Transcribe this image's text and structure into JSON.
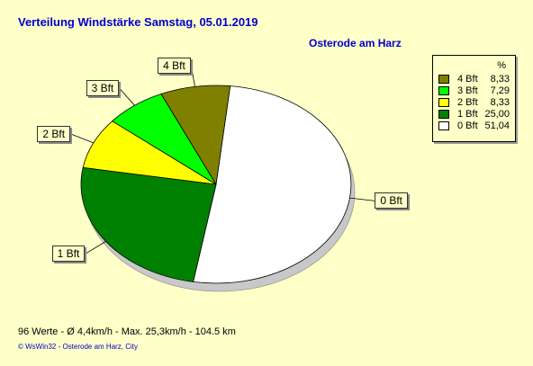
{
  "header": {
    "title": "Verteilung Windstärke  Samstag, 05.01.2019",
    "location": "Osterode am Harz"
  },
  "legend": {
    "percent_header": "%"
  },
  "chart_data": {
    "type": "pie",
    "title": "Verteilung Windstärke  Samstag, 05.01.2019",
    "slices": [
      {
        "label": "0 Bft",
        "value": 51.04,
        "value_text": "51,04",
        "color": "#ffffff"
      },
      {
        "label": "1 Bft",
        "value": 25.0,
        "value_text": "25,00",
        "color": "#008000"
      },
      {
        "label": "2 Bft",
        "value": 8.33,
        "value_text": "8,33",
        "color": "#ffff00"
      },
      {
        "label": "3 Bft",
        "value": 7.29,
        "value_text": "7,29",
        "color": "#00ff00"
      },
      {
        "label": "4 Bft",
        "value": 8.33,
        "value_text": "8,33",
        "color": "#808000"
      }
    ],
    "legend_order": [
      "4 Bft",
      "3 Bft",
      "2 Bft",
      "1 Bft",
      "0 Bft"
    ],
    "legend_position": "top-right"
  },
  "stats": {
    "text": "96 Werte   -   Ø 4,4km/h  -  Max. 25,3km/h   -   104.5 km"
  },
  "footer": {
    "text": "© WsWin32  -  Osterode am Harz, City"
  }
}
